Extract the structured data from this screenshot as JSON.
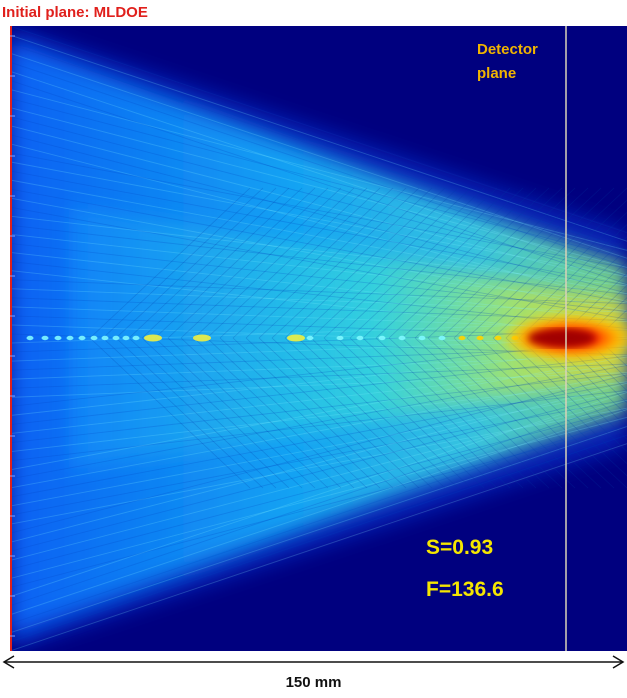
{
  "header": {
    "title": "Initial plane: MLDOE"
  },
  "figure": {
    "detector_label_line1": "Detector",
    "detector_label_line2": "plane",
    "metric_s": "S=0.93",
    "metric_f": "F=136.6",
    "scale_label": "150 mm",
    "colors": {
      "background": "#00007f",
      "title": "#e0201c",
      "detector_line": "#d9d2b8",
      "metrics": "#f5e600",
      "initial_plane_line": "#e0201c"
    }
  }
}
